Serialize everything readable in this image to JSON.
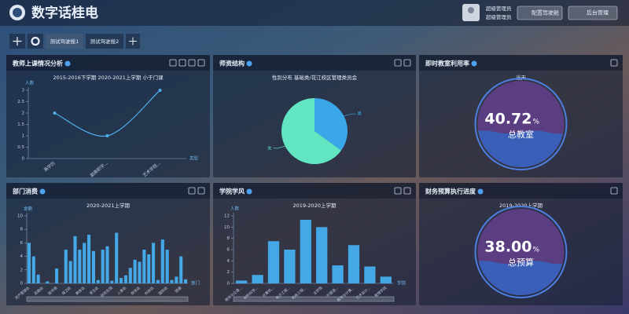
{
  "header": {
    "title": "数字话桂电",
    "user": [
      "超级管理员",
      "超级管理员"
    ],
    "buttons": [
      "配置驾驶舱",
      "后台管理"
    ]
  },
  "tabs": [
    "测试驾驶舱1",
    "测试驾驶舱2"
  ],
  "chart_data": [
    {
      "type": "line",
      "title": "教师上课情况分析",
      "subtitle": "2015-2016下学期 2020-2021上学期 小于门课",
      "y_label": "人数",
      "x_label": "类型",
      "categories": [
        "高学历",
        "副高职学...",
        "艺术学院..."
      ],
      "values": [
        2,
        1,
        3
      ],
      "color": "#4fb0ec",
      "ylim": [
        0,
        3
      ],
      "yticks": [
        0,
        0.5,
        1,
        1.5,
        2,
        2.5,
        3
      ]
    },
    {
      "type": "pie",
      "title": "师资结构",
      "subtitle": "性别分布 基础类/花江校区管理类员会",
      "categories": [
        "男",
        "女"
      ],
      "values": [
        35,
        65
      ],
      "colors": [
        "#3aa7e8",
        "#62e6c2"
      ]
    },
    {
      "type": "gauge",
      "title": "即时教室利用率",
      "subtitle": "当天",
      "value": 40.72,
      "value_label": "40.72",
      "unit": "%",
      "label": "总教室"
    },
    {
      "type": "bar",
      "title": "部门消费",
      "subtitle": "2020-2021上学期",
      "y_label": "金额",
      "x_label": "部门",
      "categories": [
        "资产管理处",
        null,
        null,
        "后勤处",
        null,
        null,
        "图书馆",
        null,
        null,
        "保卫处",
        null,
        null,
        "教务处",
        null,
        null,
        "学生处",
        null,
        null,
        "研究生院",
        null,
        null,
        "人事处",
        null,
        null,
        "财务处",
        null,
        null,
        "科技处",
        null,
        null,
        "国际处",
        null,
        null,
        "团委",
        null
      ],
      "values": [
        6,
        4,
        1.3,
        0,
        0.3,
        0,
        2.2,
        0,
        5,
        3.3,
        7,
        5,
        6,
        7.2,
        4.8,
        0.5,
        5,
        5.5,
        0.4,
        7.5,
        0.8,
        1.2,
        2.3,
        3.5,
        3.2,
        5,
        4.3,
        6,
        0.5,
        6.5,
        5,
        0.5,
        1,
        4,
        0.6
      ],
      "color": "#45a8e6",
      "ylim": [
        0,
        10
      ],
      "yticks": [
        0,
        2,
        4,
        6,
        8,
        10
      ]
    },
    {
      "type": "bar",
      "title": "学院学风",
      "subtitle": "2019-2020上学期",
      "y_label": "人数",
      "x_label": "学院",
      "categories": [
        "建筑与交通...",
        "材料科学...",
        "计算机...",
        "电子工程...",
        "机电工程...",
        "法学院",
        "外国语...",
        "数学与计算...",
        "艺术设计...",
        "管理学院"
      ],
      "values": [
        0.5,
        1.5,
        7.5,
        6,
        11.3,
        10,
        3.2,
        6.8,
        3,
        1.2
      ],
      "color": "#45a8e6",
      "ylim": [
        0,
        12
      ],
      "yticks": [
        0,
        2,
        4,
        6,
        8,
        10,
        12
      ]
    },
    {
      "type": "gauge",
      "title": "财务预算执行进度",
      "subtitle": "2019-2020上学期",
      "value": 38,
      "value_label": "38.00",
      "unit": "%",
      "label": "总预算"
    }
  ]
}
